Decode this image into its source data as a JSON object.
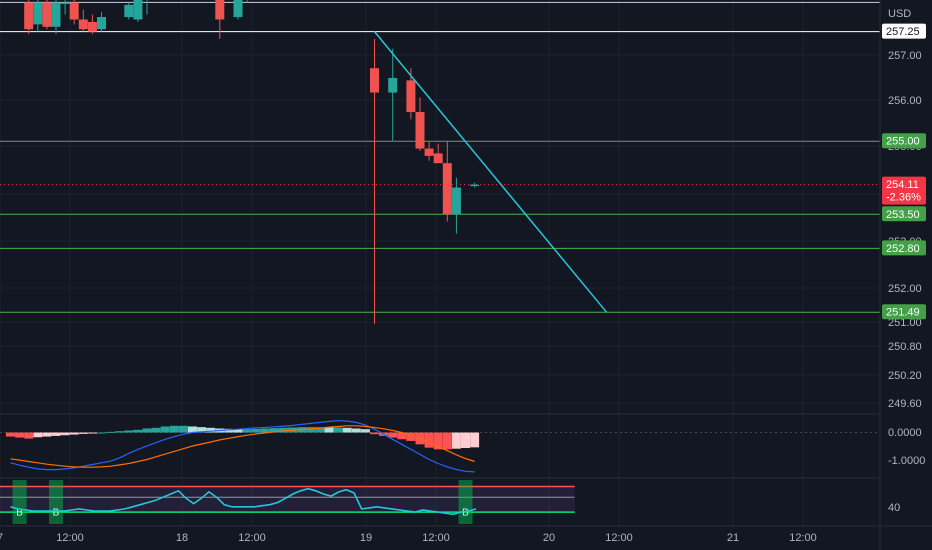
{
  "chart_data": {
    "type": "candlestick",
    "currency": "USD",
    "time_axis_labels": [
      "7",
      "12:00",
      "18",
      "12:00",
      "19",
      "12:00",
      "20",
      "12:00",
      "21",
      "12:00"
    ],
    "price_axis_ticks": [
      "257.00",
      "256.00",
      "255.00",
      "254.00",
      "253.00",
      "252.00",
      "251.00",
      "250.80",
      "250.20",
      "249.60"
    ],
    "price_range": [
      249.4,
      257.9
    ],
    "horizontal_levels": [
      {
        "label": "257.25",
        "value": 257.25,
        "color": "#ffffff"
      },
      {
        "label": "255.00",
        "value": 255.0,
        "color": "#4caf50"
      },
      {
        "label": "253.50",
        "value": 253.5,
        "color": "#4caf50"
      },
      {
        "label": "252.80",
        "value": 252.8,
        "color": "#4caf50"
      },
      {
        "label": "251.49",
        "value": 251.49,
        "color": "#4caf50"
      }
    ],
    "top_line_value": 257.85,
    "current_price": {
      "label": "254.11",
      "change": "-2.36%",
      "value": 254.11,
      "color": "#f23645"
    },
    "candles": [
      {
        "t": 2,
        "o": 257.85,
        "h": 257.95,
        "l": 257.2,
        "c": 257.3
      },
      {
        "t": 3,
        "o": 257.4,
        "h": 257.9,
        "l": 257.25,
        "c": 257.85
      },
      {
        "t": 4,
        "o": 257.85,
        "h": 257.95,
        "l": 257.3,
        "c": 257.35
      },
      {
        "t": 5,
        "o": 257.35,
        "h": 257.95,
        "l": 257.2,
        "c": 257.85
      },
      {
        "t": 6,
        "o": 257.85,
        "h": 257.95,
        "l": 257.6,
        "c": 257.85
      },
      {
        "t": 7,
        "o": 257.85,
        "h": 257.95,
        "l": 257.4,
        "c": 257.5
      },
      {
        "t": 8,
        "o": 257.5,
        "h": 257.7,
        "l": 257.25,
        "c": 257.3
      },
      {
        "t": 9,
        "o": 257.45,
        "h": 257.6,
        "l": 257.2,
        "c": 257.25
      },
      {
        "t": 10,
        "o": 257.3,
        "h": 257.65,
        "l": 257.25,
        "c": 257.55
      },
      {
        "t": 13,
        "o": 257.55,
        "h": 257.85,
        "l": 257.5,
        "c": 257.8
      },
      {
        "t": 14,
        "o": 257.5,
        "h": 257.95,
        "l": 257.45,
        "c": 257.9
      },
      {
        "t": 15,
        "o": 257.9,
        "h": 257.95,
        "l": 257.6,
        "c": 257.95
      },
      {
        "t": 23,
        "o": 257.95,
        "h": 257.98,
        "l": 257.1,
        "c": 257.5
      },
      {
        "t": 25,
        "o": 257.55,
        "h": 257.98,
        "l": 257.5,
        "c": 257.95
      },
      {
        "t": 26,
        "o": 257.9,
        "h": 257.98,
        "l": 257.85,
        "c": 257.95
      },
      {
        "t": 40,
        "o": 256.5,
        "h": 257.1,
        "l": 251.25,
        "c": 256.0
      },
      {
        "t": 42,
        "o": 256.0,
        "h": 256.9,
        "l": 255.0,
        "c": 256.3
      },
      {
        "t": 44,
        "o": 256.25,
        "h": 256.5,
        "l": 255.45,
        "c": 255.6
      },
      {
        "t": 45,
        "o": 255.6,
        "h": 255.9,
        "l": 254.8,
        "c": 254.85
      },
      {
        "t": 46,
        "o": 254.85,
        "h": 255.0,
        "l": 254.6,
        "c": 254.7
      },
      {
        "t": 47,
        "o": 254.75,
        "h": 254.95,
        "l": 254.6,
        "c": 254.55
      },
      {
        "t": 48,
        "o": 254.55,
        "h": 255.0,
        "l": 253.35,
        "c": 253.5
      },
      {
        "t": 49,
        "o": 253.5,
        "h": 254.25,
        "l": 253.1,
        "c": 254.05
      },
      {
        "t": 51,
        "o": 254.1,
        "h": 254.15,
        "l": 254.05,
        "c": 254.11
      }
    ],
    "trendline": {
      "t1": 40,
      "p1": 257.25,
      "t2": 65.5,
      "p2": 251.49
    },
    "macd": {
      "axis_ticks": [
        "0.0000",
        "-1.0000"
      ],
      "range": [
        -1.35,
        0.55
      ],
      "histogram_t0": 0,
      "histogram": [
        -0.12,
        -0.15,
        -0.18,
        -0.14,
        -0.12,
        -0.1,
        -0.08,
        -0.06,
        -0.04,
        -0.02,
        0.0,
        0.02,
        0.04,
        0.06,
        0.08,
        0.12,
        0.14,
        0.18,
        0.2,
        0.2,
        0.18,
        0.16,
        0.14,
        0.12,
        0.11,
        0.1,
        0.1,
        0.11,
        0.12,
        0.13,
        0.14,
        0.15,
        0.16,
        0.16,
        0.16,
        0.15,
        0.15,
        0.14,
        0.12,
        0.1,
        -0.05,
        -0.1,
        -0.15,
        -0.2,
        -0.25,
        -0.35,
        -0.45,
        -0.5,
        -0.5,
        -0.48,
        -0.46,
        -0.44
      ],
      "macd_line": [
        -0.9,
        -0.97,
        -1.03,
        -1.08,
        -1.1,
        -1.1,
        -1.08,
        -1.05,
        -1.0,
        -0.95,
        -0.9,
        -0.85,
        -0.75,
        -0.62,
        -0.5,
        -0.4,
        -0.3,
        -0.2,
        -0.12,
        -0.05,
        0.0,
        0.02,
        0.04,
        0.06,
        0.08,
        0.1,
        0.12,
        0.14,
        0.15,
        0.17,
        0.19,
        0.21,
        0.24,
        0.27,
        0.3,
        0.33,
        0.35,
        0.34,
        0.3,
        0.22,
        0.1,
        -0.05,
        -0.2,
        -0.35,
        -0.5,
        -0.65,
        -0.8,
        -0.92,
        -1.02,
        -1.1,
        -1.15,
        -1.17
      ],
      "signal_line": [
        -0.78,
        -0.82,
        -0.86,
        -0.9,
        -0.94,
        -0.97,
        -1.0,
        -1.02,
        -1.03,
        -1.03,
        -1.02,
        -1.0,
        -0.96,
        -0.92,
        -0.86,
        -0.8,
        -0.72,
        -0.64,
        -0.56,
        -0.48,
        -0.4,
        -0.34,
        -0.28,
        -0.22,
        -0.17,
        -0.12,
        -0.08,
        -0.04,
        -0.01,
        0.02,
        0.05,
        0.07,
        0.09,
        0.11,
        0.13,
        0.16,
        0.18,
        0.2,
        0.2,
        0.18,
        0.15,
        0.11,
        0.06,
        0.0,
        -0.08,
        -0.18,
        -0.3,
        -0.42,
        -0.54,
        -0.66,
        -0.77,
        -0.86
      ]
    },
    "rsi": {
      "axis_ticks": [
        "40"
      ],
      "range": [
        20,
        65
      ],
      "upper_band": 57,
      "mid_band": 47,
      "lower_band": 33,
      "values": [
        38,
        36,
        35,
        34,
        34,
        34,
        34,
        34,
        35,
        36,
        35,
        34,
        34,
        34,
        35,
        36,
        38,
        40,
        42,
        44,
        47,
        50,
        53,
        46,
        41,
        46,
        52,
        47,
        40,
        38,
        38,
        38,
        38,
        39,
        40,
        42,
        46,
        50,
        53,
        55,
        53,
        50,
        48,
        52,
        54,
        51,
        36,
        37,
        38,
        37,
        36,
        35,
        34,
        33,
        35,
        34,
        33,
        32,
        31,
        33,
        34,
        36
      ],
      "bullish_markers": [
        {
          "t": 1,
          "label": "B"
        },
        {
          "t": 5,
          "label": "B"
        },
        {
          "t": 50,
          "label": "B"
        }
      ]
    }
  }
}
